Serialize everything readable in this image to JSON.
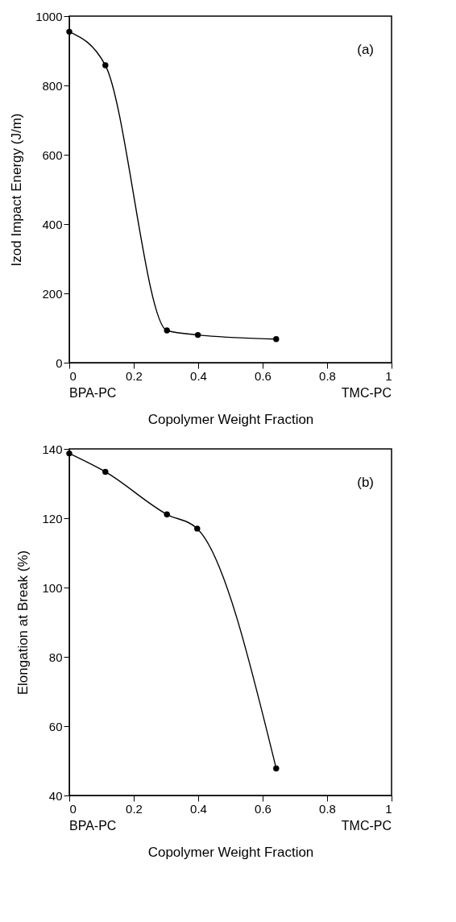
{
  "chart_data": [
    {
      "type": "line",
      "xlabel": "Copolymer Weight Fraction",
      "ylabel": "Izod Impact Energy (J/m)",
      "x": [
        0,
        0.112,
        0.303,
        0.399,
        0.642
      ],
      "series": [
        {
          "color": "#000000",
          "values": [
            955,
            858,
            93,
            80,
            68
          ]
        }
      ],
      "marker": "circle",
      "line_style": "solid",
      "grid": false,
      "xlim": [
        0,
        1
      ],
      "xticks": [
        0,
        0.2,
        0.4,
        0.6,
        0.8,
        1
      ],
      "ylim": [
        0,
        1000
      ],
      "yticks": [
        0,
        200,
        400,
        600,
        800,
        1000
      ],
      "annotations": [
        "(a)",
        "BPA-PC",
        "TMC-PC"
      ]
    },
    {
      "type": "line",
      "xlabel": "Copolymer Weight Fraction",
      "ylabel": "Elongation at Break (%)",
      "x": [
        0,
        0.112,
        0.303,
        0.397,
        0.642
      ],
      "series": [
        {
          "color": "#000000",
          "values": [
            138.7,
            133.4,
            121.1,
            117.0,
            47.8
          ]
        }
      ],
      "marker": "circle",
      "line_style": "solid",
      "grid": false,
      "xlim": [
        0,
        1
      ],
      "xticks": [
        0,
        0.2,
        0.4,
        0.6,
        0.8,
        1
      ],
      "ylim": [
        40,
        140
      ],
      "yticks": [
        40,
        60,
        80,
        100,
        120,
        140
      ],
      "annotations": [
        "(b)",
        "BPA-PC",
        "TMC-PC"
      ]
    }
  ]
}
